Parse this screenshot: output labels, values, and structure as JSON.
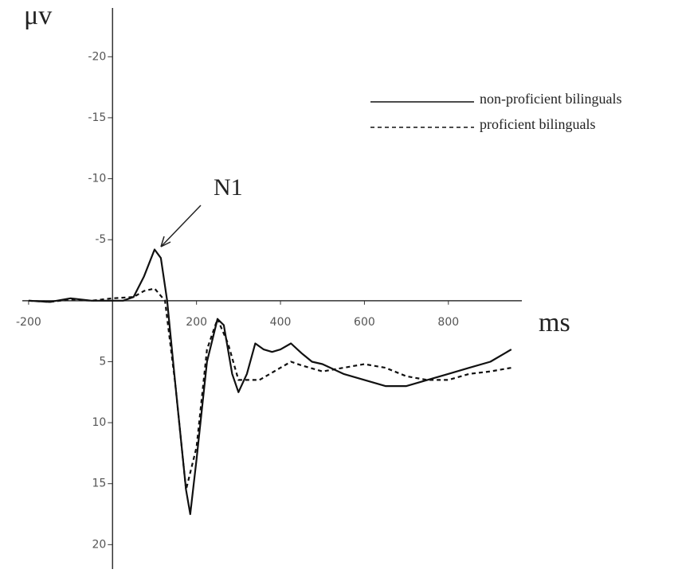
{
  "chart_data": {
    "type": "line",
    "y_label": "μv",
    "x_label": "ms",
    "annotation": "N1",
    "xlim": [
      -215,
      975
    ],
    "ylim": [
      -24,
      22
    ],
    "y_inverted": true,
    "xticks": [
      -200,
      200,
      400,
      600,
      800
    ],
    "yticks": [
      -20,
      -15,
      -10,
      -5,
      5,
      10,
      15,
      20
    ],
    "legend": "top-right",
    "series": [
      {
        "name": "non-proficient bilinguals",
        "color": "#111111",
        "line_style": "solid",
        "x": [
          -200,
          -150,
          -100,
          -50,
          0,
          25,
          50,
          75,
          100,
          115,
          130,
          150,
          175,
          185,
          200,
          225,
          250,
          265,
          285,
          300,
          320,
          340,
          360,
          380,
          400,
          425,
          450,
          475,
          500,
          550,
          600,
          650,
          700,
          750,
          800,
          850,
          900,
          950
        ],
        "values": [
          0,
          0.1,
          -0.2,
          0,
          0,
          0,
          -0.3,
          -2,
          -4.2,
          -3.5,
          0,
          7,
          15.5,
          17.5,
          13,
          5,
          1.5,
          2,
          6,
          7.5,
          6,
          3.5,
          4,
          4.2,
          4,
          3.5,
          4.3,
          5,
          5.2,
          6,
          6.5,
          7,
          7,
          6.5,
          6,
          5.5,
          5,
          4
        ]
      },
      {
        "name": "proficient bilinguals",
        "color": "#111111",
        "line_style": "dashed",
        "x": [
          -200,
          -150,
          -100,
          -50,
          0,
          50,
          75,
          100,
          125,
          150,
          175,
          200,
          225,
          250,
          275,
          300,
          350,
          400,
          425,
          450,
          500,
          550,
          600,
          650,
          700,
          750,
          800,
          850,
          900,
          950
        ],
        "values": [
          0,
          0.1,
          -0.1,
          0,
          -0.2,
          -0.3,
          -0.8,
          -1,
          0,
          7,
          15.5,
          12,
          4,
          1.5,
          3.5,
          6.5,
          6.5,
          5.5,
          5,
          5.3,
          5.8,
          5.5,
          5.2,
          5.5,
          6.2,
          6.5,
          6.5,
          6,
          5.8,
          5.5
        ]
      }
    ]
  }
}
